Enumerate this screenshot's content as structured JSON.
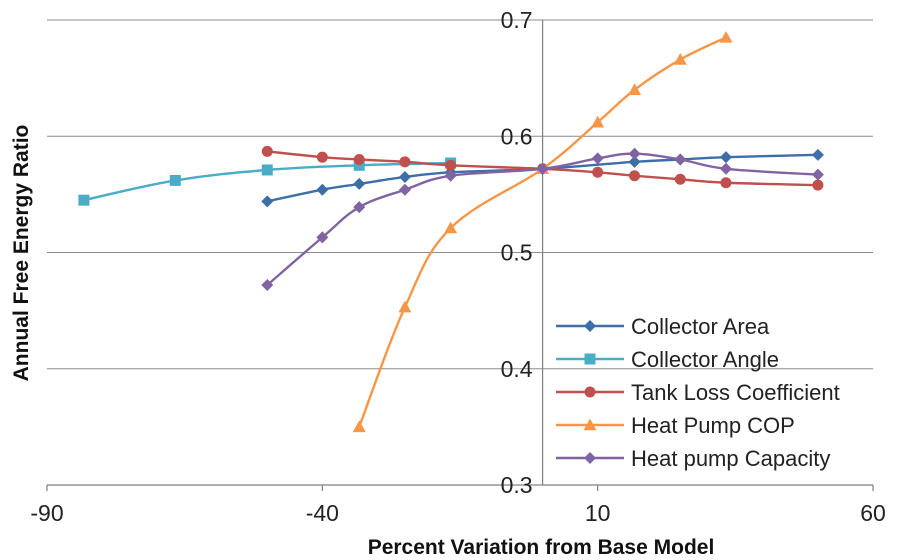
{
  "chart_data": {
    "type": "line",
    "xlabel": "Percent Variation from Base Model",
    "ylabel": "Annual Free Energy Ratio",
    "xlim": [
      -90,
      60
    ],
    "ylim": [
      0.3,
      0.7
    ],
    "x_ticks": [
      "-90",
      "-40",
      "10",
      "60"
    ],
    "y_ticks": [
      "0.3",
      "0.4",
      "0.5",
      "0.6",
      "0.7"
    ],
    "grid": "horizontal",
    "legend_position": "bottom-right",
    "series": [
      {
        "name": "Collector Area",
        "color": "#3D6FA6",
        "marker": "diamond",
        "x": [
          -50,
          -40,
          -33.3,
          -25,
          -16.7,
          0,
          16.7,
          25,
          33.3,
          50
        ],
        "y": [
          0.544,
          0.554,
          0.559,
          0.565,
          0.569,
          0.572,
          0.578,
          0.58,
          0.582,
          0.584
        ]
      },
      {
        "name": "Collector Angle",
        "color": "#4BACC6",
        "marker": "square",
        "x": [
          -83.3,
          -66.7,
          -50,
          -33.3,
          -16.7
        ],
        "y": [
          0.545,
          0.562,
          0.571,
          0.575,
          0.577
        ]
      },
      {
        "name": "Tank Loss Coefficient",
        "color": "#C0504D",
        "marker": "circle",
        "x": [
          -50,
          -40,
          -33.3,
          -25,
          -16.7,
          0,
          10,
          16.7,
          25,
          33.3,
          50
        ],
        "y": [
          0.587,
          0.582,
          0.58,
          0.578,
          0.575,
          0.572,
          0.569,
          0.566,
          0.563,
          0.56,
          0.558
        ]
      },
      {
        "name": "Heat Pump COP",
        "color": "#F79646",
        "marker": "triangle",
        "x": [
          -33.3,
          -25,
          -16.7,
          0,
          10,
          16.7,
          25,
          33.3
        ],
        "y": [
          0.35,
          0.453,
          0.521,
          0.572,
          0.612,
          0.64,
          0.666,
          0.685
        ]
      },
      {
        "name": "Heat pump Capacity",
        "color": "#8064A2",
        "marker": "diamond",
        "x": [
          -50,
          -40,
          -33.3,
          -25,
          -16.7,
          0,
          10,
          16.7,
          25,
          33.3,
          50
        ],
        "y": [
          0.472,
          0.513,
          0.539,
          0.554,
          0.566,
          0.572,
          0.581,
          0.585,
          0.58,
          0.572,
          0.567
        ]
      }
    ]
  }
}
